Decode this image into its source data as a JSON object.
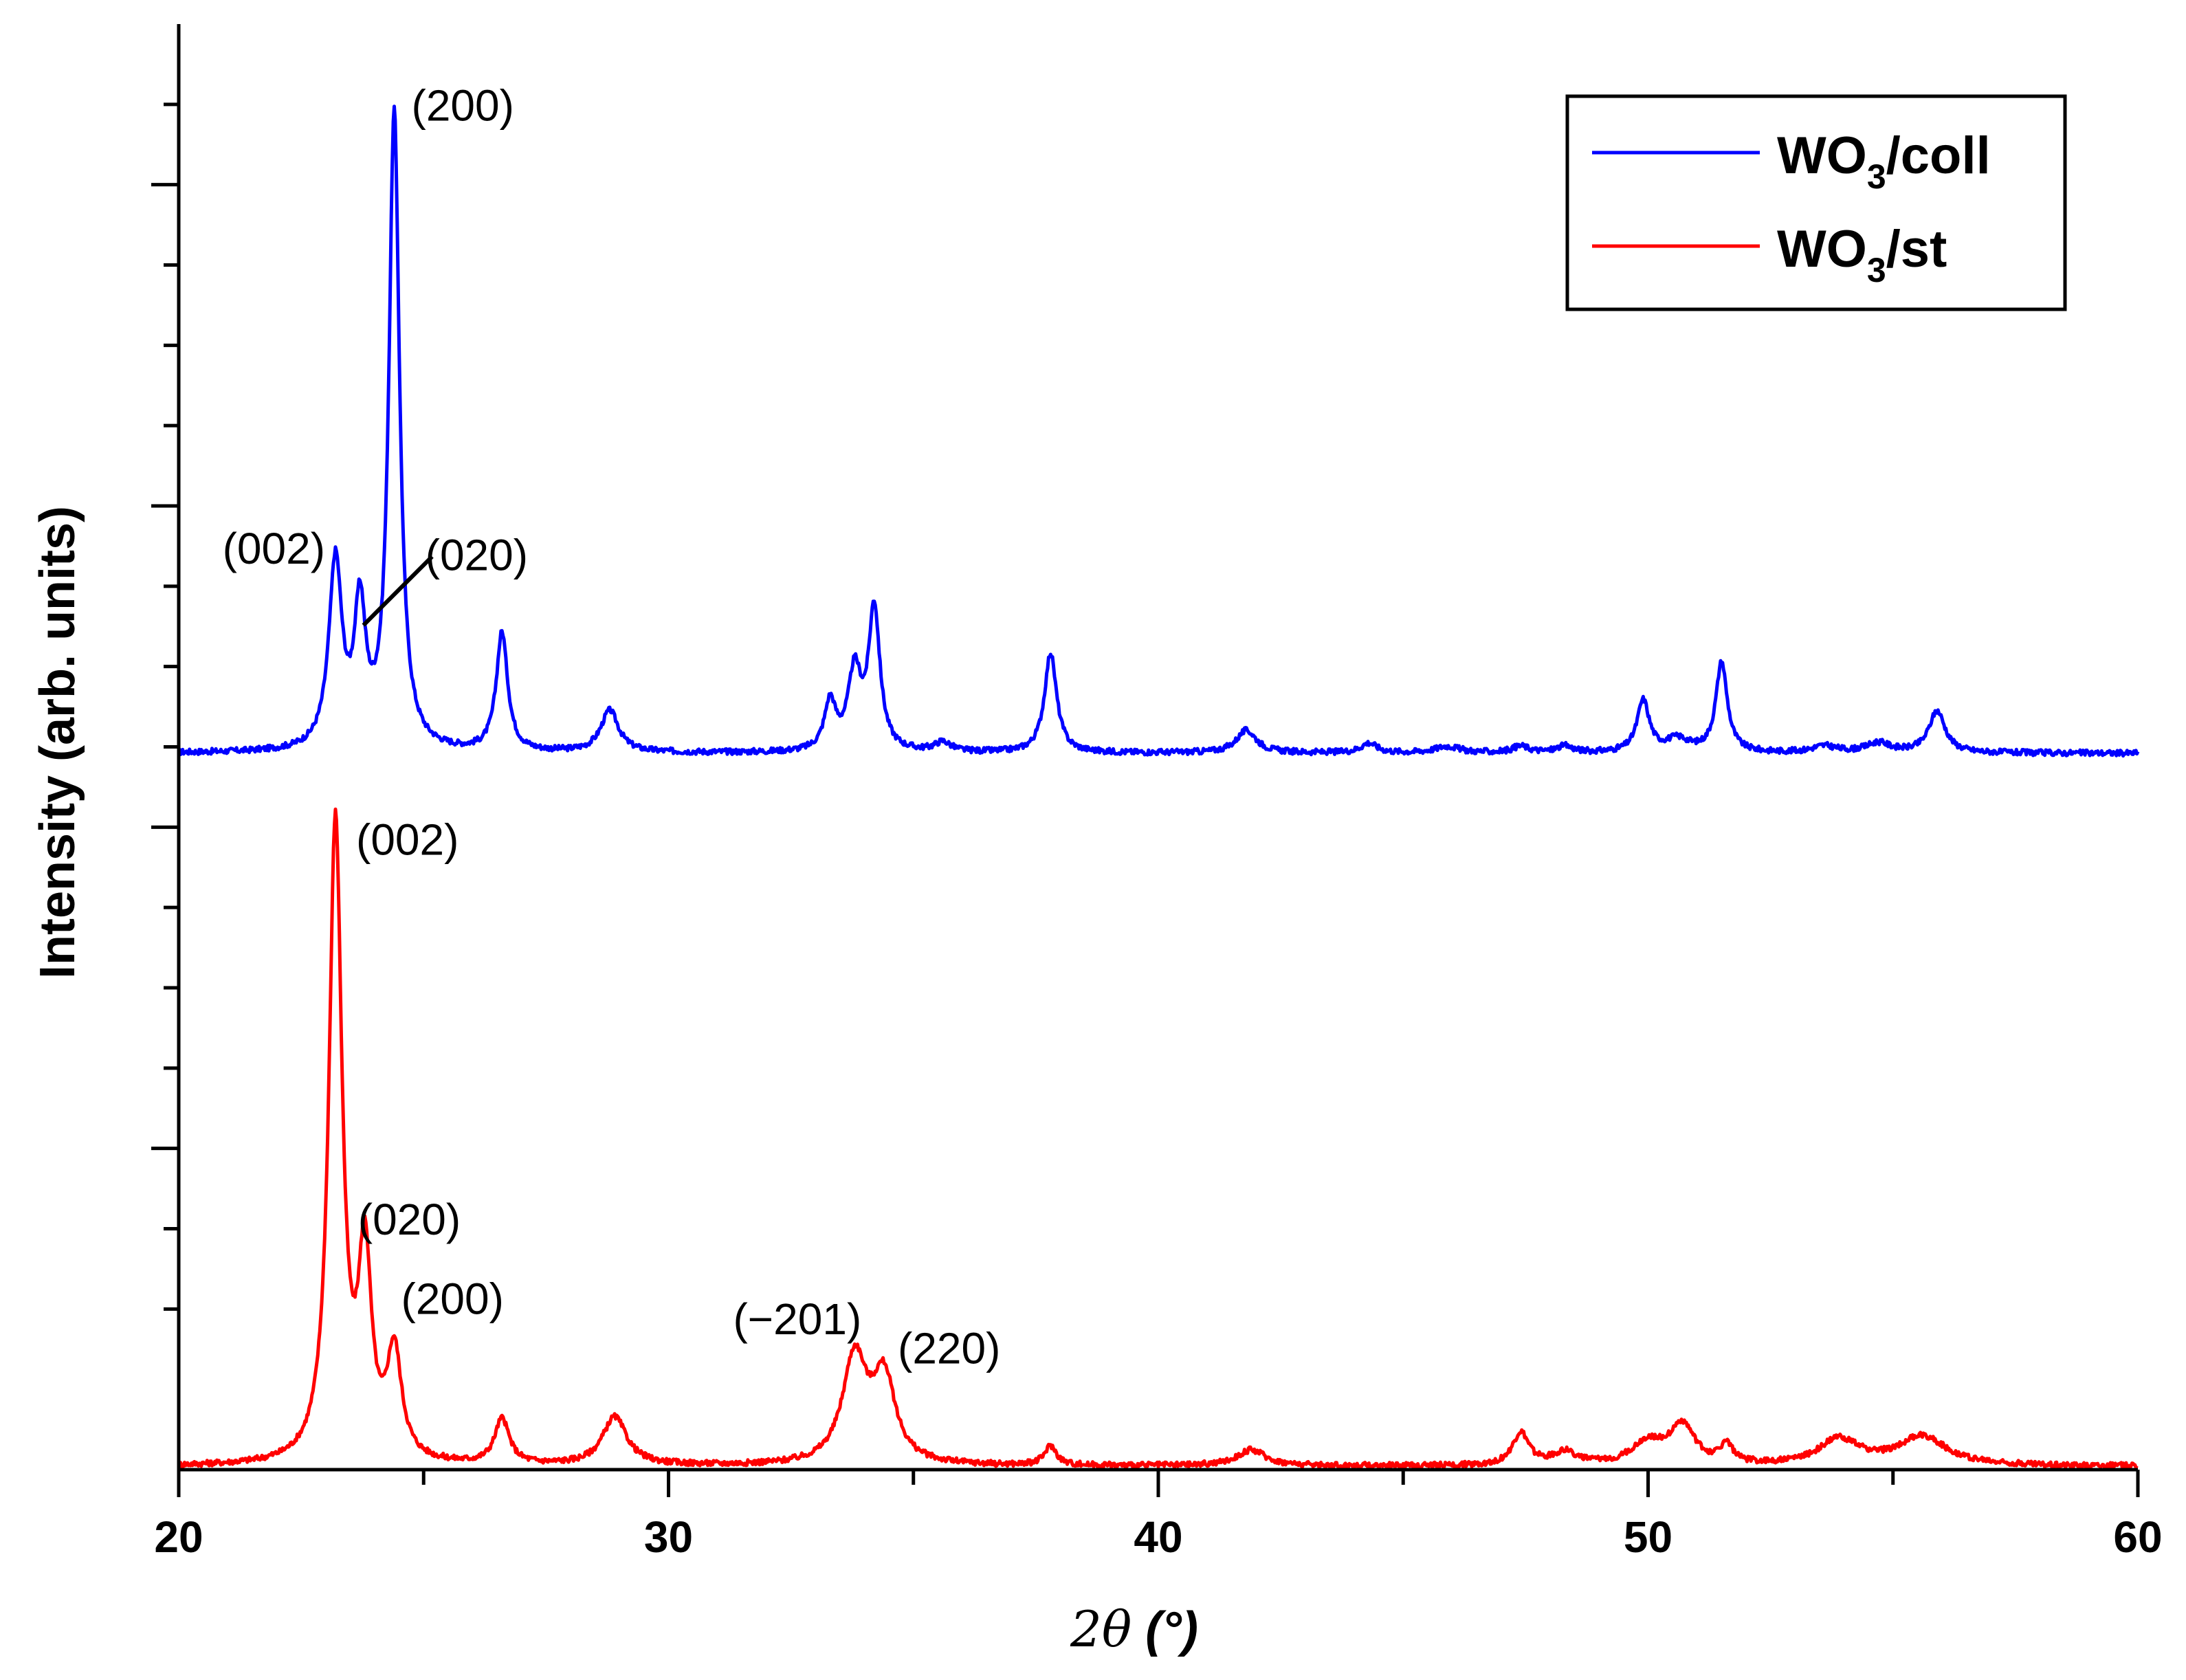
{
  "chart_data": {
    "type": "line",
    "title": "",
    "xlabel": "2θ (°)",
    "xlabel_parts": {
      "symbol": "2θ",
      "unit": " (°)"
    },
    "ylabel": "Intensity (arb. units)",
    "xlim": [
      20,
      60
    ],
    "ylim": [
      0,
      4.5
    ],
    "x_ticks": [
      20,
      30,
      40,
      50,
      60
    ],
    "x_tick_labels": [
      "20",
      "30",
      "40",
      "50",
      "60"
    ],
    "y_tick_labels_shown": false,
    "grid": false,
    "legend": {
      "position": "top-right",
      "entries": [
        {
          "series": "WO3/coll",
          "base": "WO",
          "sub": "3",
          "suffix": "/coll",
          "color": "#0000ff"
        },
        {
          "series": "WO3/st",
          "base": "WO",
          "sub": "3",
          "suffix": "/st",
          "color": "#ff0000"
        }
      ]
    },
    "series": [
      {
        "name": "WO3/coll",
        "color": "#0000ff",
        "baseline": 2.23,
        "peaks": [
          {
            "x": 23.2,
            "height": 0.58,
            "width": 0.16
          },
          {
            "x": 23.7,
            "height": 0.42,
            "width": 0.14
          },
          {
            "x": 24.4,
            "height": 1.98,
            "width": 0.13
          },
          {
            "x": 26.6,
            "height": 0.37,
            "width": 0.14
          },
          {
            "x": 28.8,
            "height": 0.13,
            "width": 0.22
          },
          {
            "x": 33.3,
            "height": 0.15,
            "width": 0.14
          },
          {
            "x": 33.8,
            "height": 0.24,
            "width": 0.16
          },
          {
            "x": 34.2,
            "height": 0.44,
            "width": 0.14
          },
          {
            "x": 35.6,
            "height": 0.03,
            "width": 0.2
          },
          {
            "x": 37.8,
            "height": 0.31,
            "width": 0.15
          },
          {
            "x": 41.8,
            "height": 0.07,
            "width": 0.25
          },
          {
            "x": 44.3,
            "height": 0.03,
            "width": 0.2
          },
          {
            "x": 45.9,
            "height": 0.02,
            "width": 0.3
          },
          {
            "x": 47.4,
            "height": 0.02,
            "width": 0.2
          },
          {
            "x": 48.3,
            "height": 0.02,
            "width": 0.2
          },
          {
            "x": 49.9,
            "height": 0.16,
            "width": 0.15
          },
          {
            "x": 50.6,
            "height": 0.04,
            "width": 0.3
          },
          {
            "x": 51.5,
            "height": 0.28,
            "width": 0.14
          },
          {
            "x": 53.6,
            "height": 0.02,
            "width": 0.3
          },
          {
            "x": 54.7,
            "height": 0.03,
            "width": 0.3
          },
          {
            "x": 55.9,
            "height": 0.13,
            "width": 0.2
          }
        ],
        "annotations": [
          {
            "label": "(200)",
            "x": 24.4,
            "y": 4.21
          },
          {
            "label": "(002)",
            "x": 23.2,
            "y": 2.81
          },
          {
            "label": "(020)",
            "x": 23.7,
            "y": 2.65
          }
        ]
      },
      {
        "name": "WO3/st",
        "color": "#ff0000",
        "baseline": 0.01,
        "peaks": [
          {
            "x": 23.2,
            "height": 1.99,
            "width": 0.16
          },
          {
            "x": 23.8,
            "height": 0.62,
            "width": 0.16
          },
          {
            "x": 24.4,
            "height": 0.33,
            "width": 0.18
          },
          {
            "x": 26.6,
            "height": 0.14,
            "width": 0.18
          },
          {
            "x": 28.9,
            "height": 0.15,
            "width": 0.3
          },
          {
            "x": 33.8,
            "height": 0.33,
            "width": 0.3
          },
          {
            "x": 34.4,
            "height": 0.26,
            "width": 0.28
          },
          {
            "x": 37.8,
            "height": 0.06,
            "width": 0.15
          },
          {
            "x": 41.9,
            "height": 0.05,
            "width": 0.35
          },
          {
            "x": 47.4,
            "height": 0.1,
            "width": 0.2
          },
          {
            "x": 48.3,
            "height": 0.04,
            "width": 0.3
          },
          {
            "x": 50.0,
            "height": 0.07,
            "width": 0.4
          },
          {
            "x": 50.7,
            "height": 0.12,
            "width": 0.3
          },
          {
            "x": 51.6,
            "height": 0.06,
            "width": 0.15
          },
          {
            "x": 53.9,
            "height": 0.08,
            "width": 0.5
          },
          {
            "x": 55.6,
            "height": 0.09,
            "width": 0.6
          }
        ],
        "annotations": [
          {
            "label": "(002)",
            "x": 23.2,
            "y": 2.0
          },
          {
            "label": "(020)",
            "x": 23.8,
            "y": 0.71
          },
          {
            "label": "(200)",
            "x": 24.4,
            "y": 0.42
          },
          {
            "label": "(−201)",
            "x": 33.8,
            "y": 0.4
          },
          {
            "label": "(220)",
            "x": 34.4,
            "y": 0.32
          }
        ]
      }
    ]
  }
}
